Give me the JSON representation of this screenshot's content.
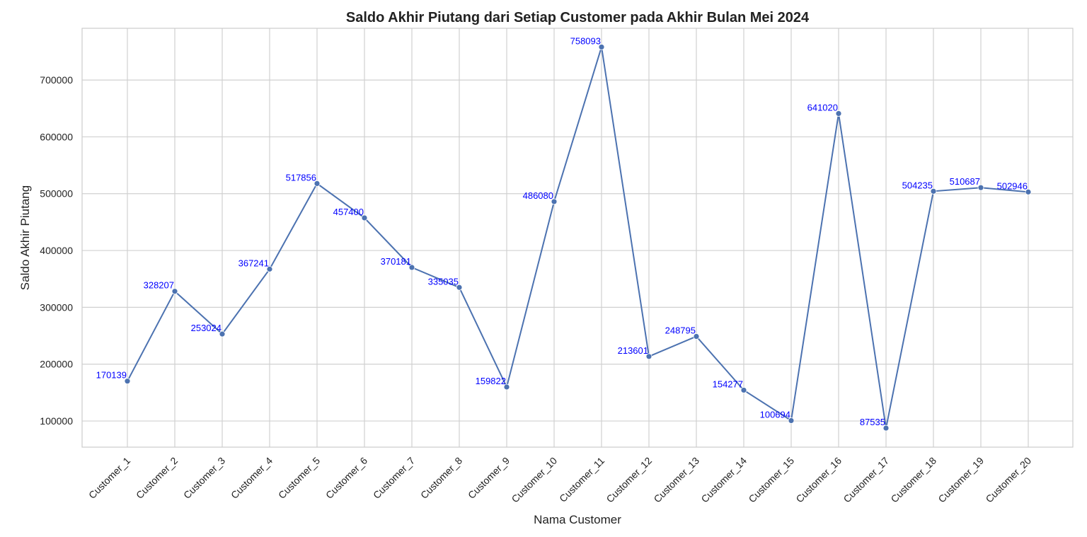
{
  "chart_data": {
    "type": "line",
    "title": "Saldo Akhir Piutang dari Setiap Customer pada Akhir Bulan Mei 2024",
    "xlabel": "Nama Customer",
    "ylabel": "Saldo Akhir Piutang",
    "categories": [
      "Customer_1",
      "Customer_2",
      "Customer_3",
      "Customer_4",
      "Customer_5",
      "Customer_6",
      "Customer_7",
      "Customer_8",
      "Customer_9",
      "Customer_10",
      "Customer_11",
      "Customer_12",
      "Customer_13",
      "Customer_14",
      "Customer_15",
      "Customer_16",
      "Customer_17",
      "Customer_18",
      "Customer_19",
      "Customer_20"
    ],
    "values": [
      170139,
      328207,
      253024,
      367241,
      517856,
      457400,
      370181,
      335035,
      159822,
      486080,
      758093,
      213601,
      248795,
      154277,
      100694,
      641020,
      87535,
      504235,
      510687,
      502946
    ],
    "data_labels": [
      "170139",
      "328207",
      "253024",
      "367241",
      "517856",
      "457400",
      "370181",
      "335035",
      "159822",
      "486080",
      "758093",
      "213601",
      "248795",
      "154277",
      "100694",
      "641020",
      "87535",
      "504235",
      "510687",
      "502946"
    ],
    "yticks": [
      100000,
      200000,
      300000,
      400000,
      500000,
      600000,
      700000
    ],
    "ytick_labels": [
      "100000",
      "200000",
      "300000",
      "400000",
      "500000",
      "600000",
      "700000"
    ],
    "ylim": [
      54000,
      791000
    ],
    "grid": true,
    "legend": "none",
    "colors": {
      "line": "#4c72b0",
      "marker": "#4c72b0",
      "data_label": "#0000ff",
      "grid": "#d0d0d0",
      "frame": "#cccccc"
    }
  }
}
